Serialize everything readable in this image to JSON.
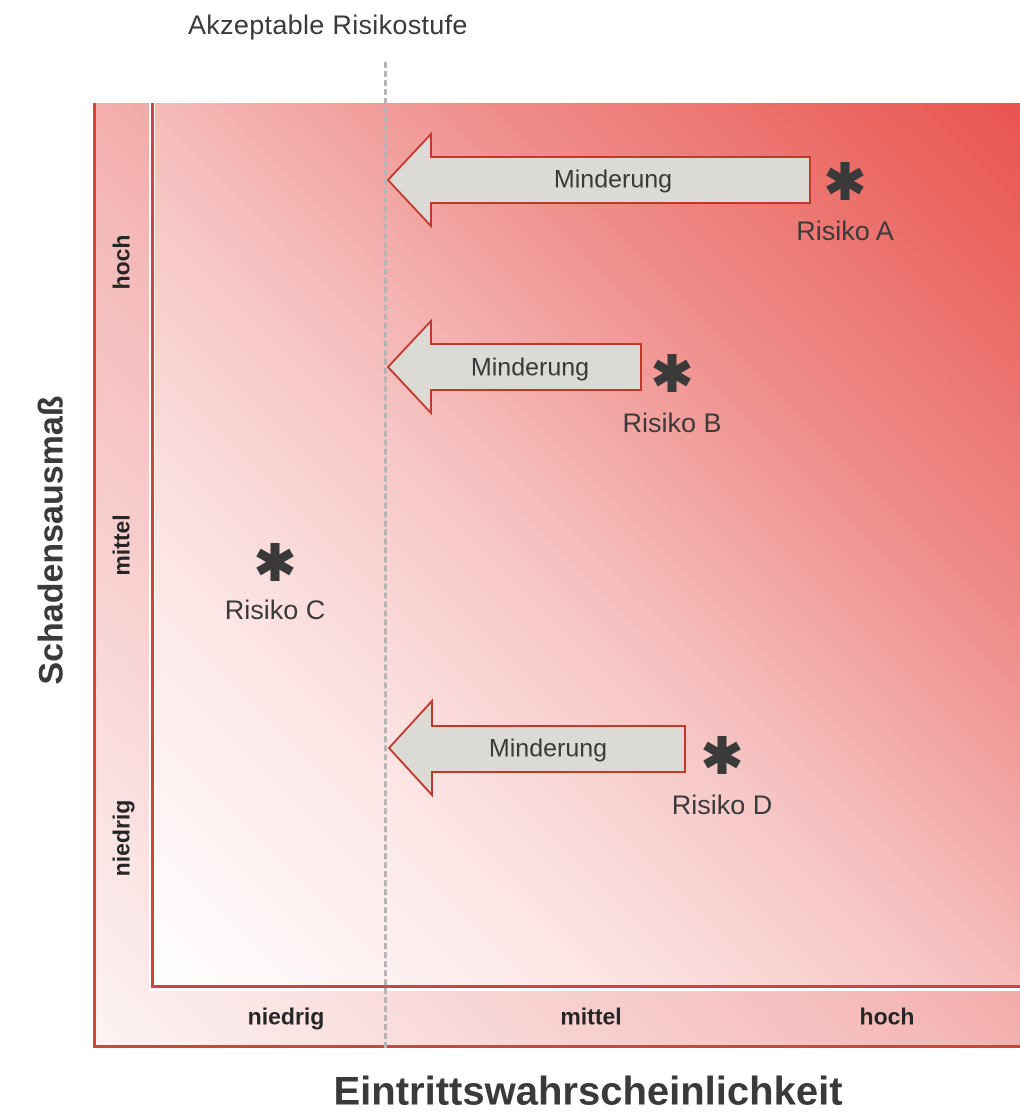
{
  "threshold_label": "Akzeptable Risikostufe",
  "y_axis": {
    "title": "Schadensausmaß",
    "ticks": [
      "hoch",
      "mittel",
      "niedrig"
    ]
  },
  "x_axis": {
    "title": "Eintrittswahrscheinlichkeit",
    "ticks": [
      "niedrig",
      "mittel",
      "hoch"
    ]
  },
  "risks": [
    {
      "label": "Risiko A",
      "mitigation": "Minderung"
    },
    {
      "label": "Risiko B",
      "mitigation": "Minderung"
    },
    {
      "label": "Risiko C"
    },
    {
      "label": "Risiko D",
      "mitigation": "Minderung"
    }
  ],
  "colors": {
    "risk_high": "#e9514c",
    "risk_low": "#fdf4f4",
    "arrow_fill": "#dcdad5",
    "arrow_stroke": "#c0392b",
    "marker": "#3a3a3a",
    "threshold_line": "#b5b5b5"
  },
  "icons": {
    "risk_marker": "asterisk-icon",
    "mitigation": "left-arrow-icon"
  }
}
